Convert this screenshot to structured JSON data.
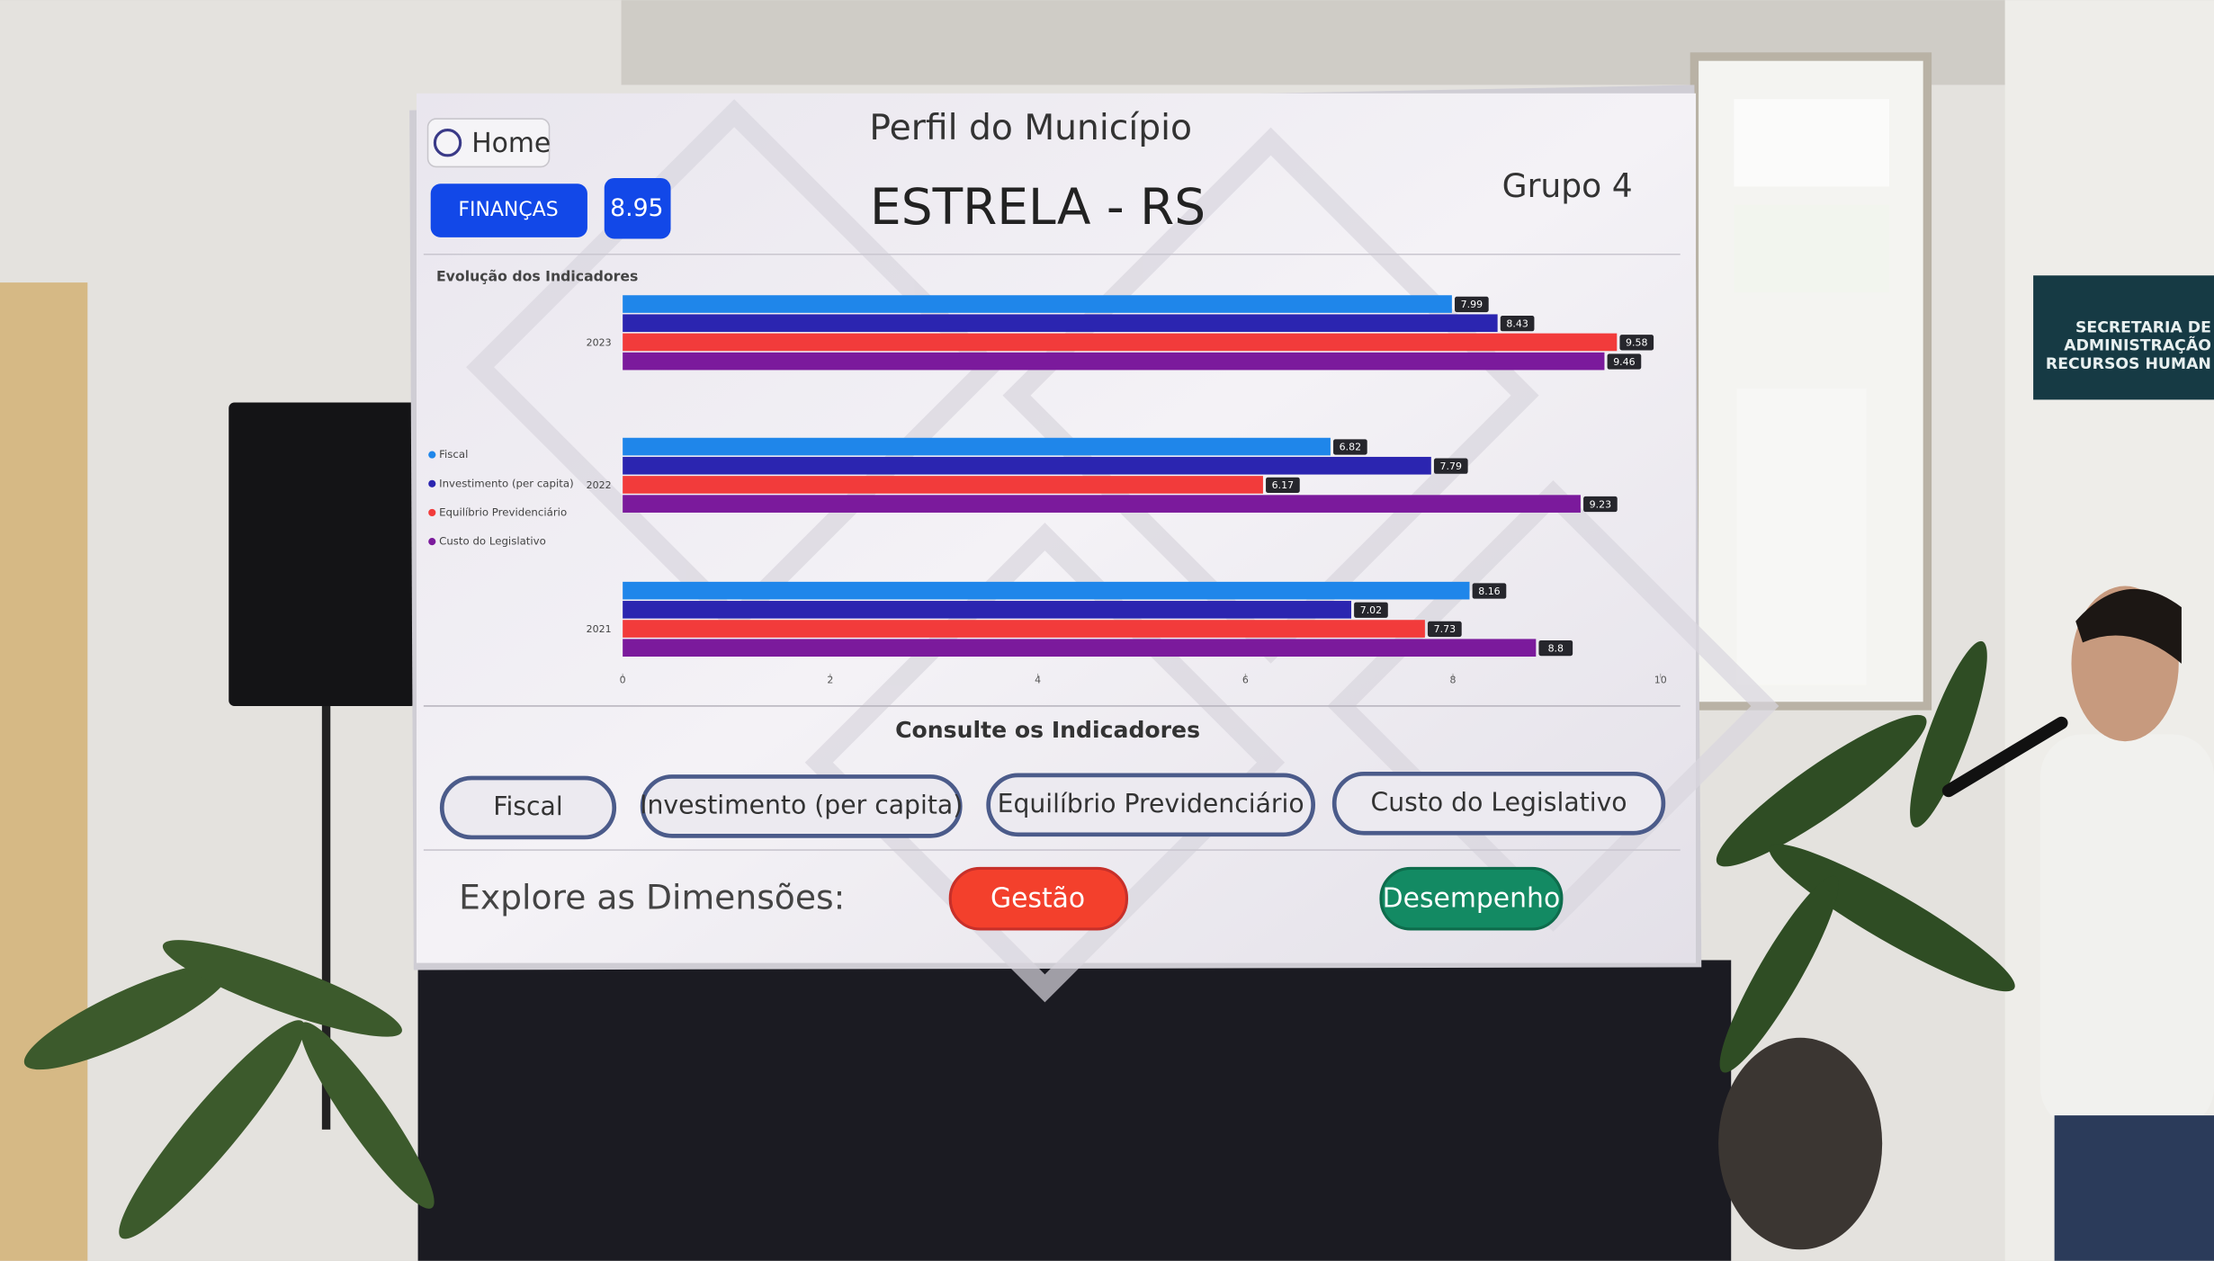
{
  "header": {
    "home": "Home",
    "title": "Perfil do Município",
    "municipality": "ESTRELA - RS",
    "group": "Grupo 4",
    "dimension": "FINANÇAS",
    "score": 8.95
  },
  "chart_data": {
    "type": "bar",
    "title": "Evolução dos Indicadores",
    "categories": [
      "2023",
      "2022",
      "2021"
    ],
    "series": [
      {
        "name": "Fiscal",
        "color": "#1f86ea",
        "values": [
          7.99,
          6.82,
          8.16
        ]
      },
      {
        "name": "Investimento (per capita)",
        "color": "#2b25b0",
        "values": [
          8.43,
          7.79,
          7.02
        ]
      },
      {
        "name": "Equilíbrio Previdenciário",
        "color": "#f23b3b",
        "values": [
          9.58,
          6.17,
          7.73
        ]
      },
      {
        "name": "Custo do Legislativo",
        "color": "#7b1a9c",
        "values": [
          9.46,
          9.23,
          8.8
        ]
      }
    ],
    "xlim": [
      0,
      10
    ],
    "xticks": [
      0,
      2,
      4,
      6,
      8,
      10
    ]
  },
  "consult": {
    "title": "Consulte os Indicadores",
    "buttons": [
      "Fiscal",
      "Investimento (per capita)",
      "Equilíbrio Previdenciário",
      "Custo do Legislativo"
    ]
  },
  "explore": {
    "label": "Explore as Dimensões:",
    "buttons": [
      "Gestão",
      "Desempenho"
    ]
  },
  "sign": {
    "lines": [
      "SECRETARIA DE",
      "ADMINISTRAÇÃO",
      "RECURSOS HUMAN"
    ]
  }
}
